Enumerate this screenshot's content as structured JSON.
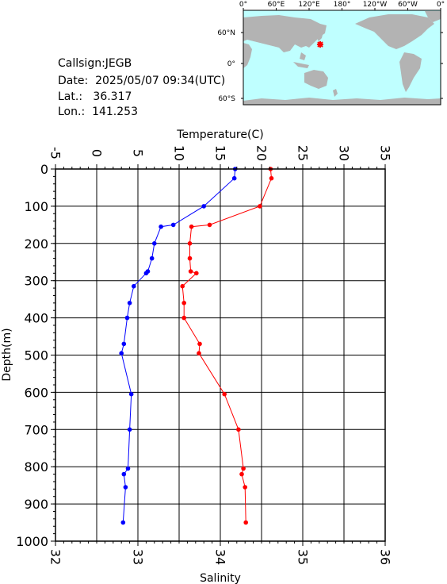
{
  "station": {
    "callsign_label": "Callsign:",
    "callsign": "JEGB",
    "date_label": "Date:",
    "date": "2025/05/07 09:34(UTC)",
    "lat_label": "Lat.:",
    "lat": "36.317",
    "lon_label": "Lon.:",
    "lon": "141.253"
  },
  "map": {
    "top_ticks": [
      "0°",
      "60°E",
      "120°E",
      "180°",
      "120°W",
      "60°W",
      "0°"
    ],
    "lat_ticks": [
      "60°N",
      "0°",
      "60°S"
    ],
    "ocean_color": "#bfffff",
    "land_color": "#b3b3b3",
    "marker_color": "#ff0000"
  },
  "chart_data": {
    "type": "line",
    "top_axis_label": "Temperature(C)",
    "bottom_axis_label": "Salinity",
    "y_axis_label": "Depth(m)",
    "temperature_ticks": [
      "-5",
      "0",
      "5",
      "10",
      "15",
      "20",
      "25",
      "30",
      "35"
    ],
    "temperature_range": [
      -5,
      35
    ],
    "salinity_ticks": [
      "32",
      "33",
      "34",
      "35",
      "36"
    ],
    "salinity_range": [
      32,
      36
    ],
    "depth_ticks": [
      "0",
      "100",
      "200",
      "300",
      "400",
      "500",
      "600",
      "700",
      "800",
      "900",
      "1000"
    ],
    "depth_range": [
      0,
      1000
    ],
    "grid": true,
    "series": [
      {
        "color": "#0000ff",
        "axis": "temperature",
        "points": [
          [
            16.8,
            0
          ],
          [
            16.7,
            25
          ],
          [
            13.0,
            100
          ],
          [
            9.3,
            150
          ],
          [
            7.8,
            155
          ],
          [
            7.0,
            200
          ],
          [
            6.7,
            240
          ],
          [
            6.2,
            275
          ],
          [
            6.0,
            280
          ],
          [
            4.5,
            315
          ],
          [
            4.0,
            360
          ],
          [
            3.7,
            400
          ],
          [
            3.3,
            470
          ],
          [
            3.0,
            495
          ],
          [
            4.2,
            605
          ],
          [
            4.0,
            700
          ],
          [
            3.8,
            805
          ],
          [
            3.3,
            820
          ],
          [
            3.5,
            855
          ],
          [
            3.2,
            950
          ]
        ]
      },
      {
        "color": "#ff0000",
        "axis": "salinity",
        "points": [
          [
            34.61,
            0
          ],
          [
            34.62,
            25
          ],
          [
            34.48,
            100
          ],
          [
            33.87,
            150
          ],
          [
            33.65,
            155
          ],
          [
            33.63,
            200
          ],
          [
            33.63,
            240
          ],
          [
            33.64,
            275
          ],
          [
            33.71,
            280
          ],
          [
            33.54,
            315
          ],
          [
            33.56,
            360
          ],
          [
            33.56,
            400
          ],
          [
            33.75,
            470
          ],
          [
            33.74,
            495
          ],
          [
            34.05,
            605
          ],
          [
            34.22,
            700
          ],
          [
            34.28,
            805
          ],
          [
            34.26,
            820
          ],
          [
            34.3,
            855
          ],
          [
            34.31,
            950
          ]
        ]
      }
    ]
  }
}
